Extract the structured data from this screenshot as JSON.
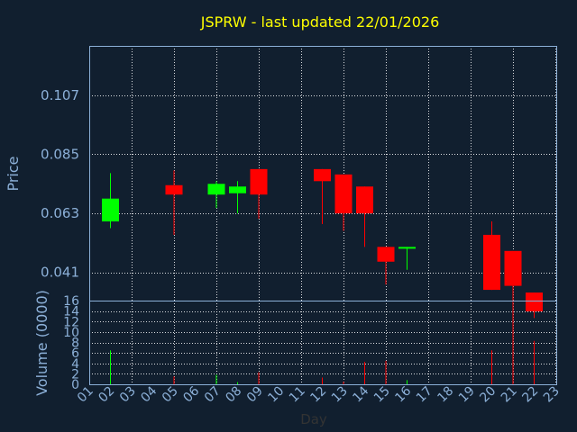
{
  "colors": {
    "background": "#111f2f",
    "axis": "#8cb0d8",
    "grid": "#ffffff",
    "title": "#ffff00",
    "up": "#00ff00",
    "down": "#ff0000"
  },
  "chart_data": {
    "type": "candlestick",
    "title": "JSPRW - last updated 22/01/2026",
    "xlabel": "Day",
    "ylabel_price": "Price",
    "ylabel_volume": "Volume (0000)",
    "x_ticks": [
      "01",
      "02",
      "03",
      "04",
      "05",
      "06",
      "07",
      "08",
      "09",
      "10",
      "11",
      "12",
      "13",
      "14",
      "15",
      "16",
      "17",
      "18",
      "19",
      "20",
      "21",
      "22",
      "23"
    ],
    "price_ticks": [
      "0.041",
      "0.063",
      "0.085",
      "0.107"
    ],
    "price_tick_values": [
      0.041,
      0.063,
      0.085,
      0.107
    ],
    "price_range": [
      0.0305,
      0.1254
    ],
    "volume_ticks": [
      "0",
      "2",
      "4",
      "6",
      "8",
      "10",
      "12",
      "14",
      "16"
    ],
    "volume_range": [
      0,
      16
    ],
    "grid": true,
    "candles": [
      {
        "day": 2,
        "open": 0.06,
        "close": 0.0685,
        "high": 0.078,
        "low": 0.0575,
        "volume": 6.5
      },
      {
        "day": 5,
        "open": 0.0735,
        "close": 0.07,
        "high": 0.079,
        "low": 0.055,
        "volume": 1.5
      },
      {
        "day": 7,
        "open": 0.07,
        "close": 0.074,
        "high": 0.075,
        "low": 0.065,
        "volume": 1.8
      },
      {
        "day": 8,
        "open": 0.0705,
        "close": 0.073,
        "high": 0.075,
        "low": 0.063,
        "volume": 0.4
      },
      {
        "day": 9,
        "open": 0.0795,
        "close": 0.07,
        "high": 0.0795,
        "low": 0.061,
        "volume": 2.3
      },
      {
        "day": 12,
        "open": 0.0795,
        "close": 0.075,
        "high": 0.0795,
        "low": 0.059,
        "volume": 1.3
      },
      {
        "day": 13,
        "open": 0.0775,
        "close": 0.063,
        "high": 0.0775,
        "low": 0.0565,
        "volume": 0.5
      },
      {
        "day": 14,
        "open": 0.073,
        "close": 0.063,
        "high": 0.073,
        "low": 0.0505,
        "volume": 4.3
      },
      {
        "day": 15,
        "open": 0.0505,
        "close": 0.045,
        "high": 0.0505,
        "low": 0.0365,
        "volume": 4.5
      },
      {
        "day": 16,
        "open": 0.05,
        "close": 0.0505,
        "high": 0.0505,
        "low": 0.042,
        "volume": 0.8
      },
      {
        "day": 20,
        "open": 0.055,
        "close": 0.0345,
        "high": 0.06,
        "low": 0.0345,
        "volume": 6.5
      },
      {
        "day": 21,
        "open": 0.049,
        "close": 0.036,
        "high": 0.049,
        "low": 0.027,
        "volume": 14.6
      },
      {
        "day": 22,
        "open": 0.0335,
        "close": 0.0265,
        "high": 0.0335,
        "low": 0.024,
        "volume": 8.3
      }
    ]
  }
}
